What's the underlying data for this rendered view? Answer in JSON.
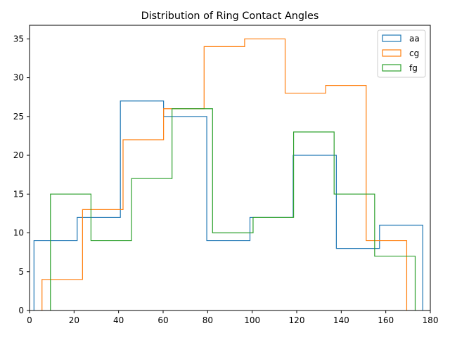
{
  "chart_data": {
    "type": "histogram-step",
    "title": "Distribution of Ring Contact Angles",
    "xlabel": "",
    "ylabel": "",
    "xlim": [
      0,
      180
    ],
    "ylim": [
      0,
      36.75
    ],
    "xticks": [
      0,
      20,
      40,
      60,
      80,
      100,
      120,
      140,
      160,
      180
    ],
    "yticks": [
      0,
      5,
      10,
      15,
      20,
      25,
      30,
      35
    ],
    "grid": false,
    "legend_position": "top-right",
    "series": [
      {
        "name": "aa",
        "color": "#1f77b4",
        "edges": [
          2.0,
          21.4,
          40.8,
          60.2,
          79.6,
          99.0,
          118.4,
          137.8,
          157.2,
          176.6
        ],
        "counts": [
          9,
          12,
          27,
          25,
          9,
          12,
          20,
          8,
          11
        ]
      },
      {
        "name": "cg",
        "color": "#ff7f0e",
        "edges": [
          5.6,
          23.8,
          42.0,
          60.2,
          78.4,
          96.6,
          114.8,
          133.0,
          151.2,
          169.4
        ],
        "counts": [
          4,
          13,
          22,
          26,
          34,
          35,
          28,
          29,
          9
        ]
      },
      {
        "name": "fg",
        "color": "#2ca02c",
        "edges": [
          9.4,
          27.6,
          45.8,
          64.0,
          82.2,
          100.4,
          118.6,
          136.8,
          155.0,
          173.2
        ],
        "counts": [
          15,
          9,
          17,
          26,
          10,
          12,
          23,
          15,
          7
        ]
      }
    ]
  }
}
